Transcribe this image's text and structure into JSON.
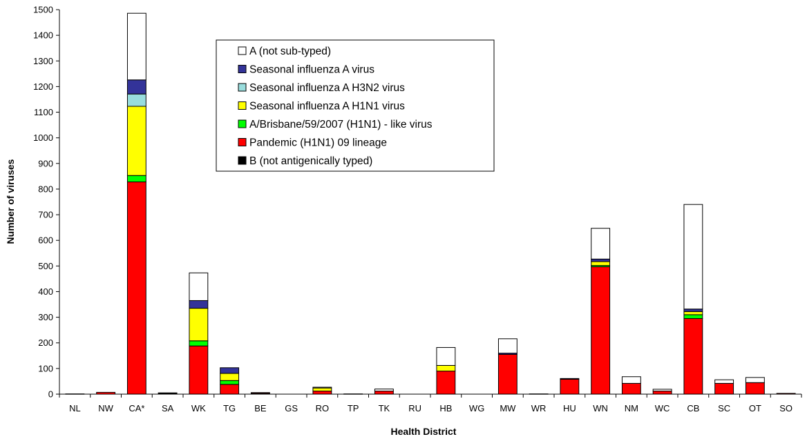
{
  "chart_data": {
    "type": "bar",
    "stacked": true,
    "xlabel": "Health District",
    "ylabel": "Number of viruses",
    "ylim": [
      0,
      1500
    ],
    "ytick_step": 100,
    "grid": false,
    "legend_position": "top-center",
    "categories": [
      "NL",
      "NW",
      "CA*",
      "SA",
      "WK",
      "TG",
      "BE",
      "GS",
      "RO",
      "TP",
      "TK",
      "RU",
      "HB",
      "WG",
      "MW",
      "WR",
      "HU",
      "WN",
      "NM",
      "WC",
      "CB",
      "SC",
      "OT",
      "SO"
    ],
    "series": [
      {
        "name": "B (not antigenically typed)",
        "color": "#000000",
        "values": [
          0,
          0,
          0,
          3,
          0,
          0,
          3,
          0,
          0,
          0,
          0,
          0,
          0,
          0,
          0,
          0,
          0,
          0,
          0,
          0,
          0,
          0,
          0,
          0
        ]
      },
      {
        "name": "Pandemic (H1N1) 09 lineage",
        "color": "#ff0000",
        "values": [
          1,
          7,
          828,
          2,
          188,
          38,
          3,
          0,
          12,
          1,
          12,
          0,
          90,
          0,
          155,
          1,
          58,
          497,
          42,
          12,
          295,
          42,
          45,
          3
        ]
      },
      {
        "name": "A/Brisbane/59/2007 (H1N1) - like virus",
        "color": "#00ff00",
        "values": [
          0,
          0,
          25,
          0,
          20,
          15,
          0,
          0,
          0,
          0,
          0,
          0,
          0,
          0,
          0,
          0,
          0,
          5,
          0,
          0,
          15,
          0,
          0,
          0
        ]
      },
      {
        "name": "Seasonal influenza A H1N1 virus",
        "color": "#ffff00",
        "values": [
          0,
          0,
          270,
          0,
          127,
          28,
          0,
          0,
          12,
          0,
          0,
          0,
          22,
          0,
          0,
          0,
          0,
          15,
          0,
          0,
          12,
          0,
          0,
          0
        ]
      },
      {
        "name": "Seasonal influenza A H3N2 virus",
        "color": "#99dddd",
        "values": [
          0,
          0,
          48,
          0,
          0,
          0,
          0,
          0,
          0,
          0,
          0,
          0,
          0,
          0,
          0,
          0,
          0,
          0,
          0,
          0,
          0,
          0,
          0,
          0
        ]
      },
      {
        "name": "Seasonal influenza A virus",
        "color": "#333399",
        "values": [
          0,
          0,
          55,
          0,
          30,
          22,
          0,
          0,
          0,
          0,
          0,
          0,
          0,
          0,
          5,
          0,
          3,
          10,
          0,
          0,
          10,
          0,
          0,
          0
        ]
      },
      {
        "name": "A (not sub-typed)",
        "color": "#ffffff",
        "values": [
          0,
          0,
          260,
          0,
          108,
          0,
          0,
          0,
          3,
          0,
          8,
          0,
          70,
          0,
          56,
          0,
          0,
          120,
          26,
          7,
          408,
          14,
          20,
          0
        ]
      }
    ],
    "legend_order": [
      "A (not sub-typed)",
      "Seasonal influenza A virus",
      "Seasonal influenza A H3N2 virus",
      "Seasonal influenza A H1N1 virus",
      "A/Brisbane/59/2007 (H1N1) - like virus",
      "Pandemic (H1N1) 09 lineage",
      "B (not antigenically typed)"
    ]
  }
}
